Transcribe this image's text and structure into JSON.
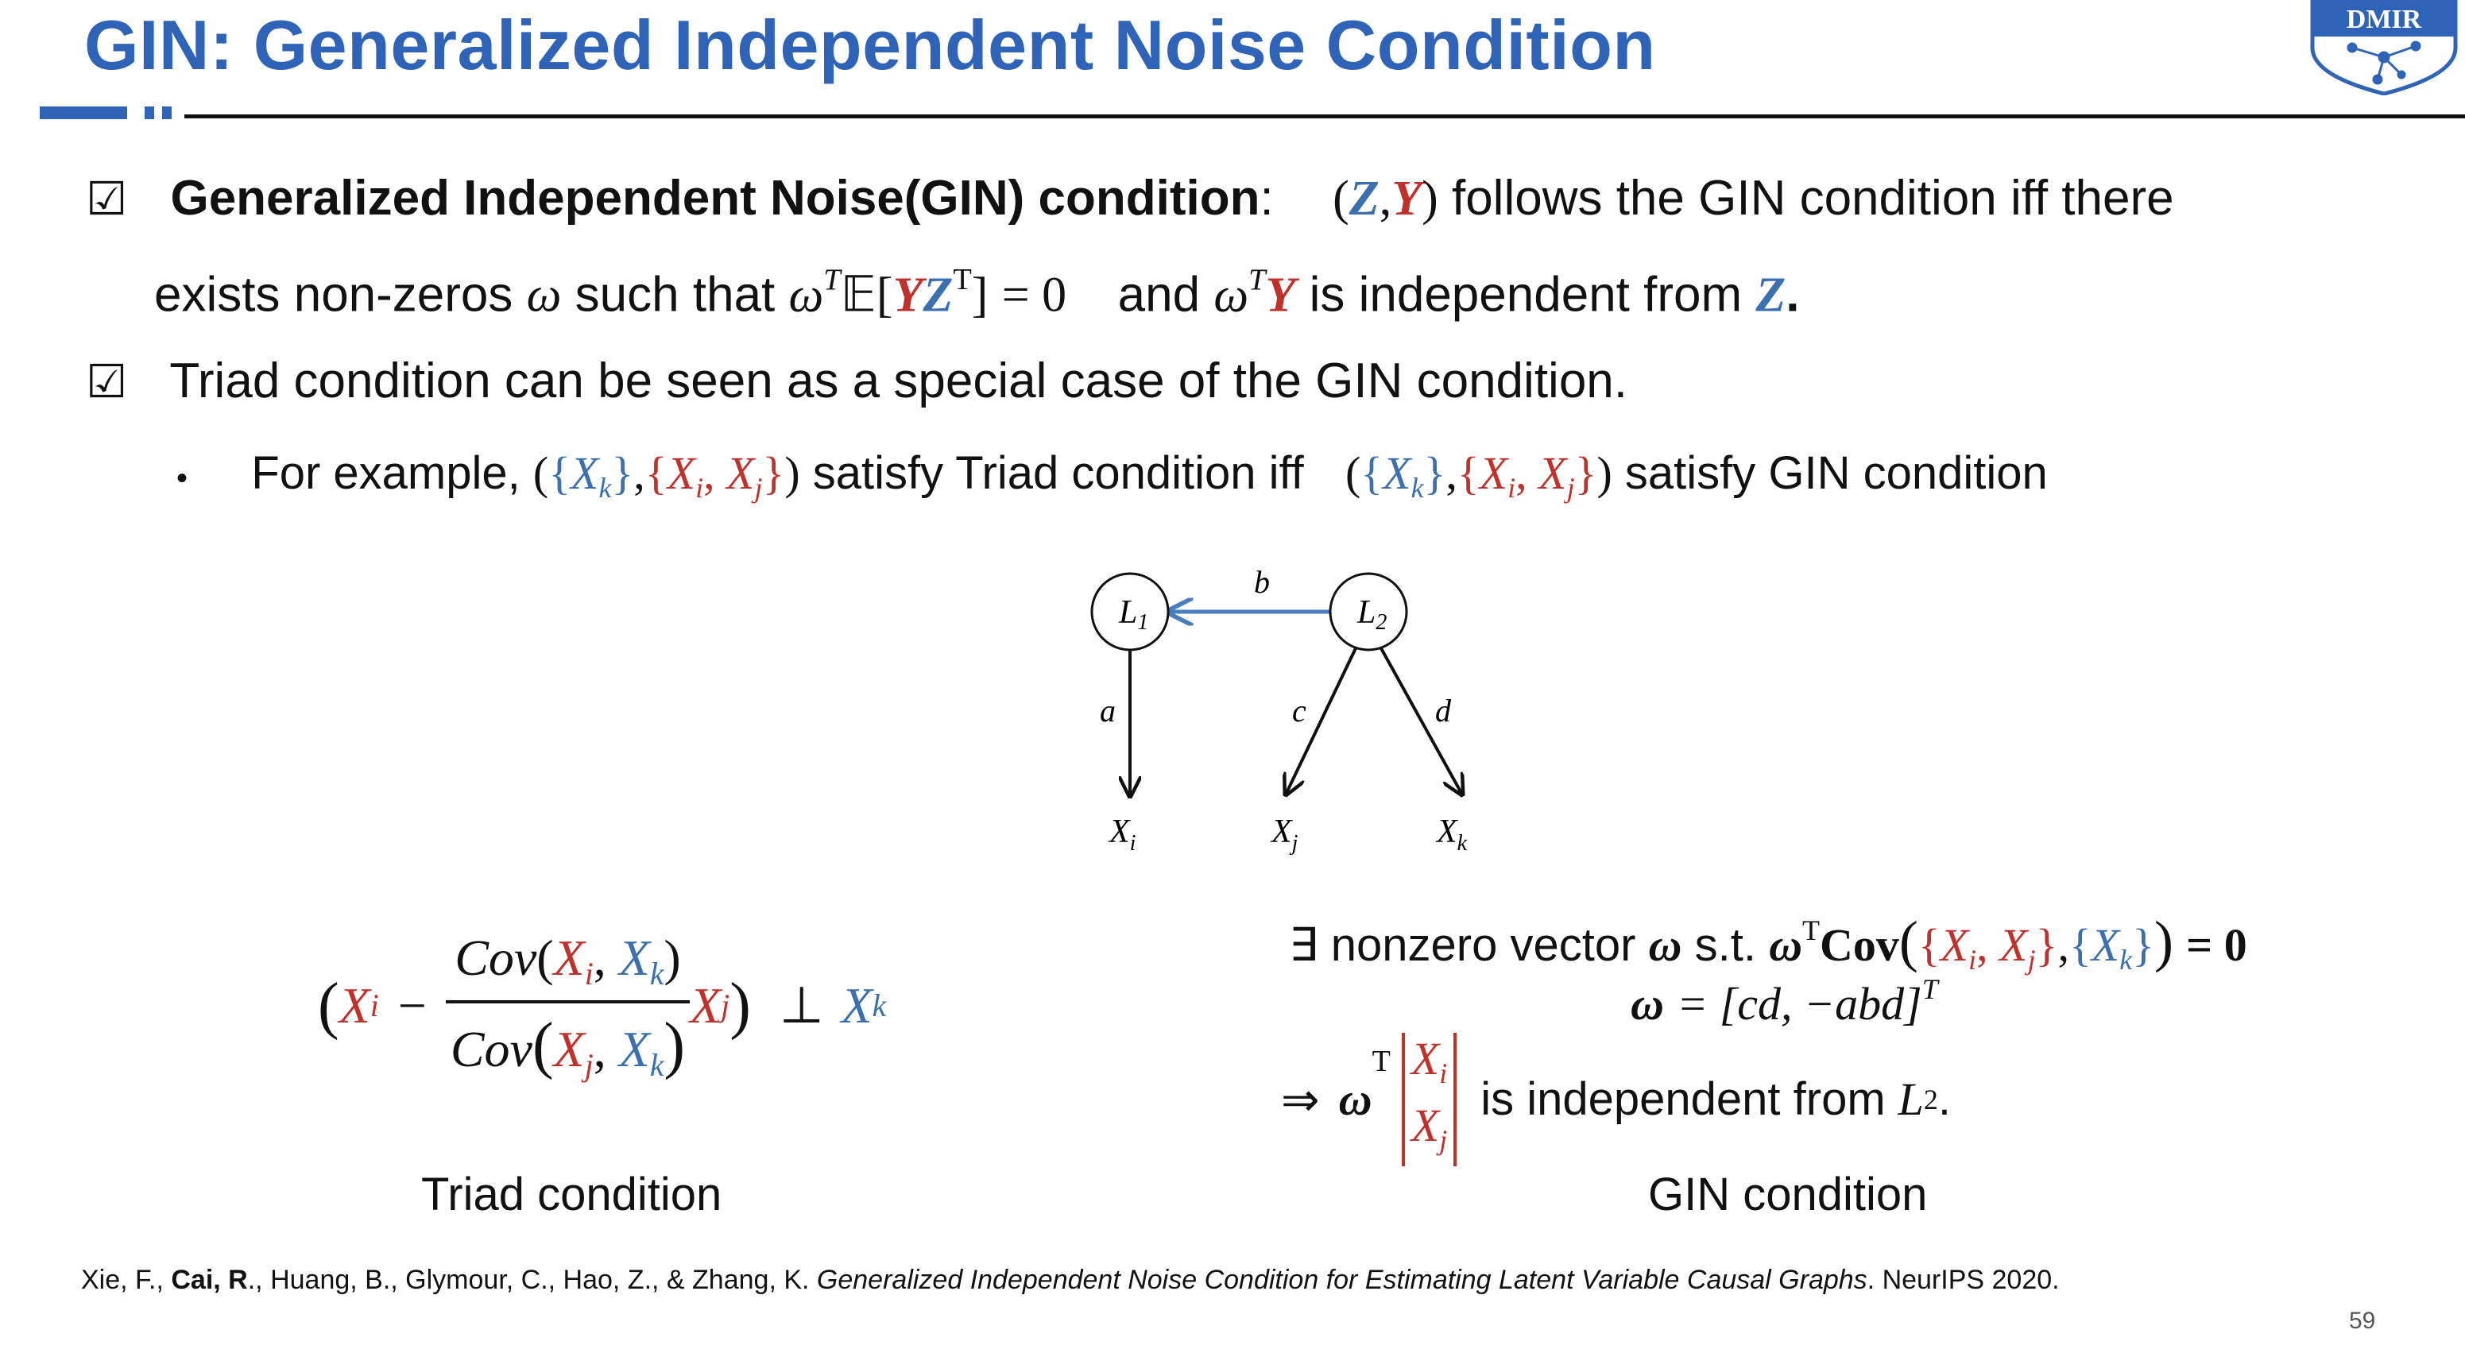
{
  "slide": {
    "title": "GIN: Generalized Independent Noise Condition",
    "logo_text": "DMIR",
    "page_number": "59"
  },
  "bullets": {
    "b1_bold": "Generalized Independent Noise(GIN) condition",
    "b1_colon": ":",
    "b1_rest": "follows the GIN condition iff there",
    "b1_line2a": "exists non-zeros",
    "b1_line2b": "such that",
    "b1_line2c": "and",
    "b1_line2d": "is independent from",
    "b2": "Triad condition can be seen as a special case of the GIN condition.",
    "sub_a": "For example,",
    "sub_b": "satisfy Triad condition iff",
    "sub_c": "satisfy GIN condition"
  },
  "math": {
    "Z": "Z",
    "Y": "Y",
    "omega": "ω",
    "T": "T",
    "E": "𝔼",
    "eq_zero": "= 0",
    "Xk": "X",
    "k": "k",
    "i": "i",
    "j": "j"
  },
  "diagram": {
    "nodes": {
      "L1": "L",
      "L2": "L",
      "L1_sub": "1",
      "L2_sub": "2",
      "Xi": "X",
      "Xj": "X",
      "Xk": "X"
    },
    "edge_labels": {
      "b": "b",
      "a": "a",
      "c": "c",
      "d": "d"
    }
  },
  "triad": {
    "caption": "Triad condition",
    "cov": "Cov",
    "indep": "⊥"
  },
  "gin": {
    "caption": "GIN condition",
    "line1a": "∃ nonzero vector",
    "line1b": "s.t.",
    "cov_bold": "Cov",
    "eq_bold0": "= 0",
    "line2": "= [cd, −abd]",
    "implies": "⇒",
    "line3": "is independent from",
    "line3_end": "."
  },
  "reference": {
    "a": "Xie, F., ",
    "b": "Cai, R",
    "c": "., Huang, B., Glymour, C., Hao, Z., & Zhang, K. ",
    "d": "Generalized Independent Noise Condition for Estimating Latent Variable Causal Graphs",
    "e": ". NeurIPS 2020."
  },
  "colors": {
    "accent": "#2e63b8",
    "blue": "#3b6fb0",
    "red": "#c0312b"
  }
}
